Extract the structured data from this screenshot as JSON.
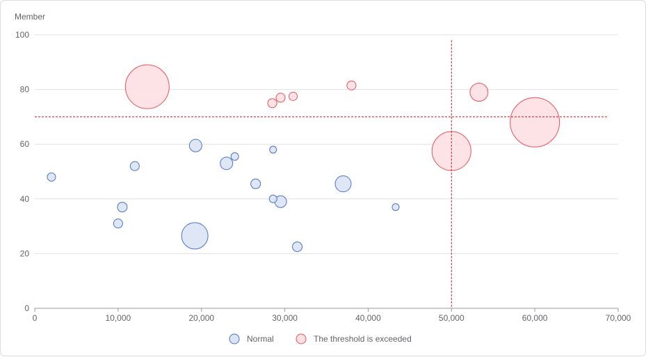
{
  "chart_data": {
    "type": "scatter",
    "ylabel": "Member",
    "xlim": [
      0,
      70000
    ],
    "ylim": [
      0,
      100
    ],
    "x_ticks": [
      0,
      10000,
      20000,
      30000,
      40000,
      50000,
      60000,
      70000
    ],
    "x_tick_labels": [
      "0",
      "10,000",
      "20,000",
      "30,000",
      "40,000",
      "50,000",
      "60,000",
      "70,000"
    ],
    "y_ticks": [
      0,
      20,
      40,
      60,
      80,
      100
    ],
    "y_tick_labels": [
      "0",
      "20",
      "40",
      "60",
      "80",
      "100"
    ],
    "grid": "horizontal",
    "legend_position": "bottom",
    "thresholds": {
      "x": 50000,
      "y": 70
    },
    "colors": {
      "normal_stroke": "#4a72c4",
      "normal_fill": "#dbe4f5",
      "exceeded_stroke": "#e8525d",
      "exceeded_fill": "#fde0e3",
      "threshold_line": "#c8161d",
      "grid": "#e0e0e0",
      "axis": "#999999"
    },
    "series": [
      {
        "name": "Normal",
        "points": [
          {
            "x": 2000,
            "y": 48,
            "size": 12
          },
          {
            "x": 10000,
            "y": 31,
            "size": 13
          },
          {
            "x": 10500,
            "y": 37,
            "size": 14
          },
          {
            "x": 12000,
            "y": 52,
            "size": 13
          },
          {
            "x": 19200,
            "y": 26.5,
            "size": 38
          },
          {
            "x": 19300,
            "y": 59.5,
            "size": 18
          },
          {
            "x": 23000,
            "y": 53,
            "size": 18
          },
          {
            "x": 24000,
            "y": 55.5,
            "size": 11
          },
          {
            "x": 26500,
            "y": 45.5,
            "size": 14
          },
          {
            "x": 28600,
            "y": 58,
            "size": 10
          },
          {
            "x": 28600,
            "y": 40,
            "size": 11
          },
          {
            "x": 29500,
            "y": 39,
            "size": 17
          },
          {
            "x": 31500,
            "y": 22.5,
            "size": 14
          },
          {
            "x": 37000,
            "y": 45.5,
            "size": 23
          },
          {
            "x": 43300,
            "y": 37,
            "size": 10
          }
        ]
      },
      {
        "name": "The threshold is exceeded",
        "points": [
          {
            "x": 13500,
            "y": 81,
            "size": 63
          },
          {
            "x": 28500,
            "y": 75,
            "size": 13
          },
          {
            "x": 29500,
            "y": 77,
            "size": 13
          },
          {
            "x": 31000,
            "y": 77.5,
            "size": 12
          },
          {
            "x": 38000,
            "y": 81.5,
            "size": 13
          },
          {
            "x": 50000,
            "y": 57.5,
            "size": 56
          },
          {
            "x": 53300,
            "y": 79,
            "size": 26
          },
          {
            "x": 60000,
            "y": 68,
            "size": 71
          }
        ]
      }
    ]
  }
}
